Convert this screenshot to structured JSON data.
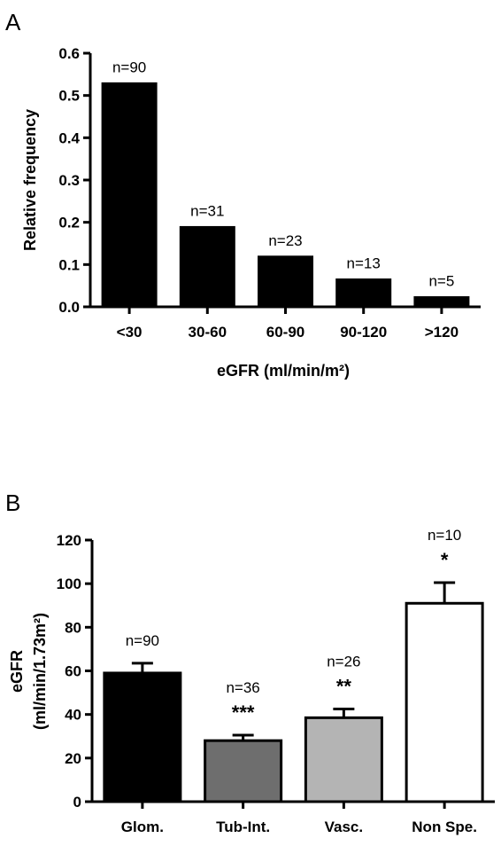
{
  "chart_data": [
    {
      "panel": "A",
      "type": "bar",
      "categories": [
        "<30",
        "30-60",
        "60-90",
        "90-120",
        ">120"
      ],
      "values": [
        0.53,
        0.19,
        0.12,
        0.066,
        0.024
      ],
      "bar_labels": [
        "n=90",
        "n=31",
        "n=23",
        "n=13",
        "n=5"
      ],
      "colors": [
        "#000000",
        "#000000",
        "#000000",
        "#000000",
        "#000000"
      ],
      "xlabel": "eGFR (ml/min/m²)",
      "ylabel": "Relative frequency",
      "ylim": [
        0,
        0.6
      ],
      "yticks": [
        "0.0",
        "0.1",
        "0.2",
        "0.3",
        "0.4",
        "0.5",
        "0.6"
      ],
      "grid": false
    },
    {
      "panel": "B",
      "type": "bar",
      "categories": [
        "Glom.",
        "Tub-Int.",
        "Vasc.",
        "Non Spe."
      ],
      "values": [
        59,
        28,
        38.5,
        91
      ],
      "errors": [
        4.5,
        2.5,
        4,
        9.5
      ],
      "bar_labels": [
        "n=90",
        "n=36",
        "n=26",
        "n=10"
      ],
      "significance": [
        "",
        "***",
        "**",
        "*"
      ],
      "colors": [
        "#000000",
        "#6e6e6e",
        "#b4b4b4",
        "#ffffff"
      ],
      "xlabel": "",
      "ylabel_line1": "eGFR",
      "ylabel_line2": "(ml/min/1.73m²)",
      "ylim": [
        0,
        120
      ],
      "yticks": [
        "0",
        "20",
        "40",
        "60",
        "80",
        "100",
        "120"
      ],
      "grid": false
    }
  ]
}
